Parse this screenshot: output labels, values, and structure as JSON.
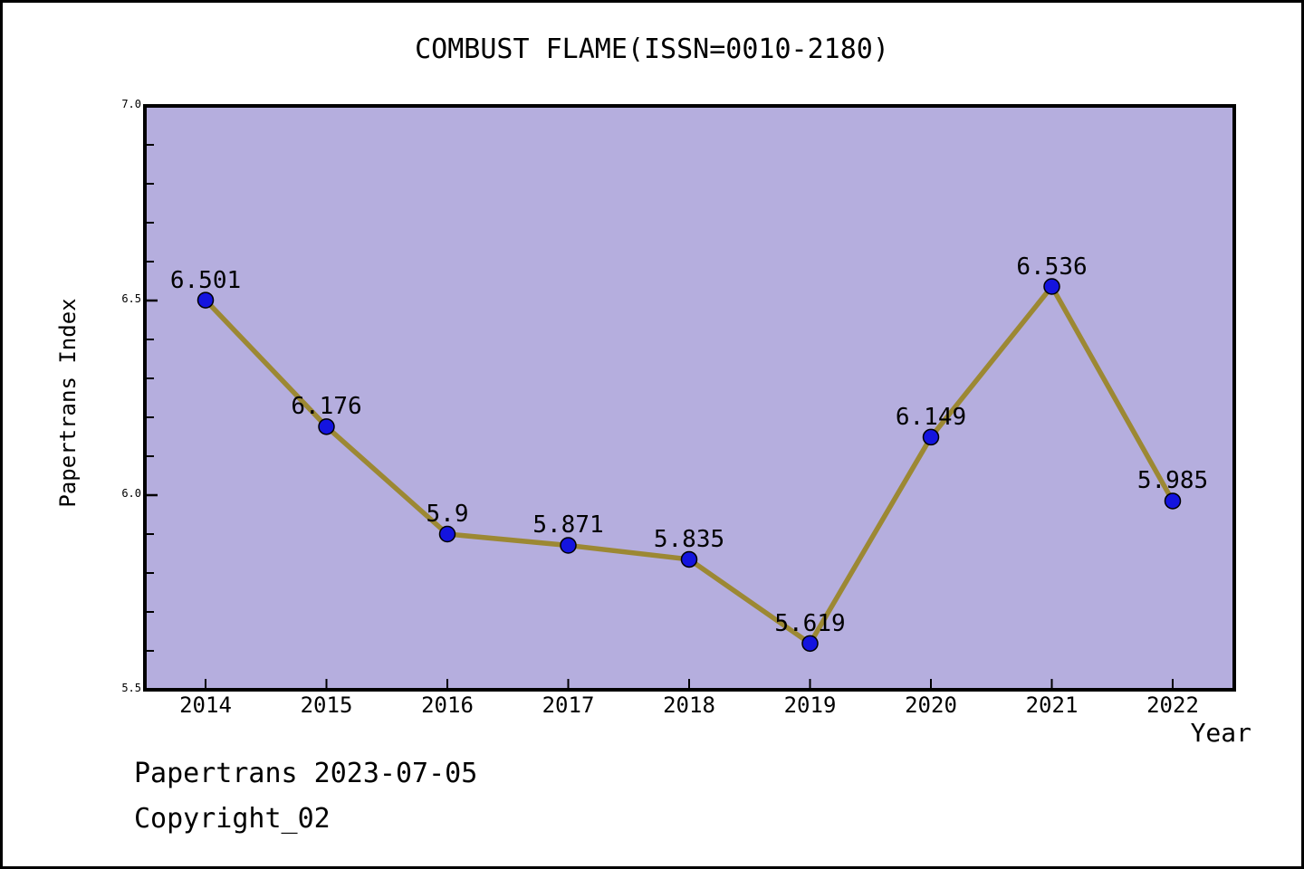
{
  "chart_data": {
    "type": "line",
    "title": "COMBUST FLAME(ISSN=0010-2180)",
    "categories": [
      "2014",
      "2015",
      "2016",
      "2017",
      "2018",
      "2019",
      "2020",
      "2021",
      "2022"
    ],
    "values": [
      6.501,
      6.176,
      5.9,
      5.871,
      5.835,
      5.619,
      6.149,
      6.536,
      5.985
    ],
    "point_labels": [
      "6.501",
      "6.176",
      "5.9",
      "5.871",
      "5.835",
      "5.619",
      "6.149",
      "6.536",
      "5.985"
    ],
    "xlabel": "Year",
    "ylabel": "Papertrans Index",
    "ylim": [
      5.5,
      7.0
    ],
    "ytick_major": [
      5.5,
      6.0,
      6.5,
      7.0
    ],
    "ytick_labels": [
      "5.5",
      "6.0",
      "6.5",
      "7.0"
    ],
    "ytick_minor_step": 0.1,
    "grid": false,
    "legend": false,
    "marker": "circle",
    "colors": {
      "plot_bg": "#B5AEDE",
      "line": "#9C8833",
      "point_fill": "#1414DF",
      "point_edge": "#000000",
      "axis": "#000000",
      "text": "#000000"
    }
  },
  "footer": {
    "line1": "Papertrans 2023-07-05",
    "line2": "Copyright_02"
  }
}
